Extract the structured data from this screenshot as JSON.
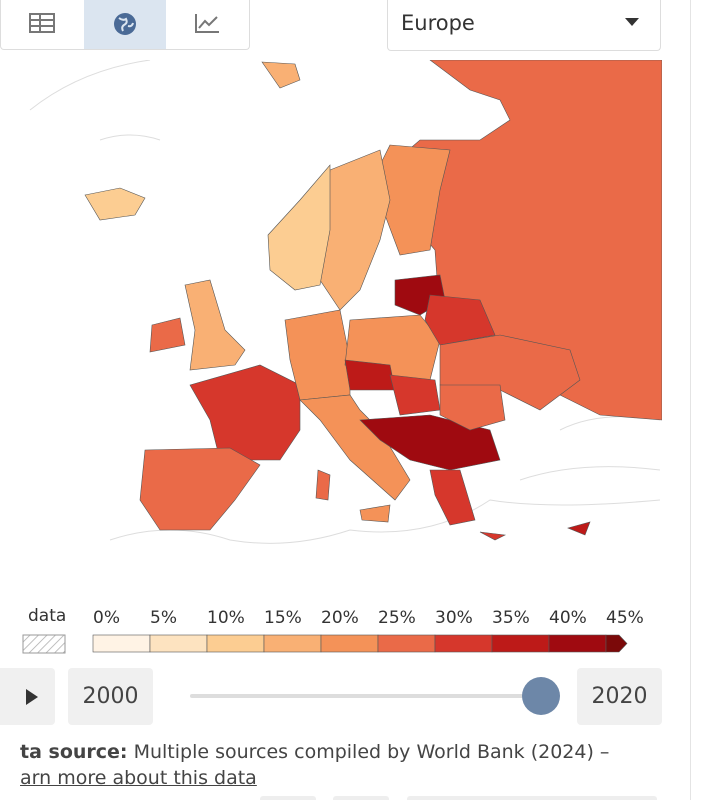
{
  "toolbar": {
    "region": "Europe"
  },
  "legend": {
    "no_data": "data",
    "bins": [
      {
        "label": "0%",
        "color": "#fff3e5"
      },
      {
        "label": "5%",
        "color": "#fde3c0"
      },
      {
        "label": "10%",
        "color": "#fccd92"
      },
      {
        "label": "15%",
        "color": "#f9b074"
      },
      {
        "label": "20%",
        "color": "#f49258"
      },
      {
        "label": "25%",
        "color": "#ea6a48"
      },
      {
        "label": "30%",
        "color": "#d6372c"
      },
      {
        "label": "35%",
        "color": "#bd1a18"
      },
      {
        "label": "40%",
        "color": "#9f0a10"
      },
      {
        "label": "45%",
        "color": "#7b0909"
      }
    ]
  },
  "timeline": {
    "start": "2000",
    "end": "2020"
  },
  "source": {
    "label": "ta source:",
    "text": "Multiple sources compiled by World Bank (2024) –",
    "link": "arn more about this data"
  }
}
